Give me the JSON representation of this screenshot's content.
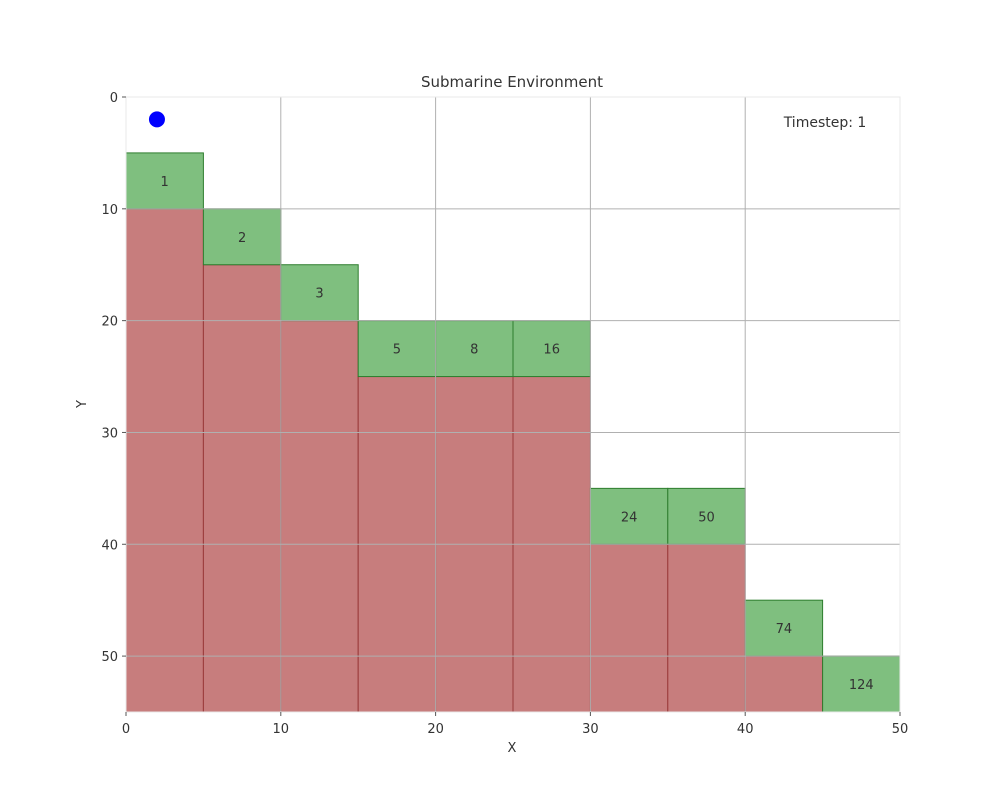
{
  "title": "Submarine Environment",
  "timestep_label": "Timestep: 1",
  "chart_data": {
    "type": "grid-environment",
    "xlabel": "X",
    "ylabel": "Y",
    "xlim": [
      0,
      50
    ],
    "ylim": [
      55,
      0
    ],
    "y_inverted": true,
    "grid": true,
    "x_ticks": [
      0,
      10,
      20,
      30,
      40,
      50
    ],
    "y_ticks": [
      0,
      10,
      20,
      30,
      40,
      50
    ],
    "submarine": {
      "x": 2,
      "y": 2
    },
    "columns": [
      {
        "x0": 0,
        "x1": 5,
        "seabed_y": 10,
        "reward_y": 5,
        "reward": "1"
      },
      {
        "x0": 5,
        "x1": 10,
        "seabed_y": 15,
        "reward_y": 10,
        "reward": "2"
      },
      {
        "x0": 10,
        "x1": 15,
        "seabed_y": 20,
        "reward_y": 15,
        "reward": "3"
      },
      {
        "x0": 15,
        "x1": 20,
        "seabed_y": 25,
        "reward_y": 20,
        "reward": "5"
      },
      {
        "x0": 20,
        "x1": 25,
        "seabed_y": 25,
        "reward_y": 20,
        "reward": "8"
      },
      {
        "x0": 25,
        "x1": 30,
        "seabed_y": 25,
        "reward_y": 20,
        "reward": "16"
      },
      {
        "x0": 30,
        "x1": 35,
        "seabed_y": 40,
        "reward_y": 35,
        "reward": "24"
      },
      {
        "x0": 35,
        "x1": 40,
        "seabed_y": 40,
        "reward_y": 35,
        "reward": "50"
      },
      {
        "x0": 40,
        "x1": 45,
        "seabed_y": 50,
        "reward_y": 45,
        "reward": "74"
      },
      {
        "x0": 45,
        "x1": 50,
        "seabed_y": 55,
        "reward_y": 50,
        "reward": "124"
      }
    ],
    "colors": {
      "seabed": "#c77d7d",
      "seabed_edge": "#9a3a3a",
      "reward": "#7fbf7f",
      "reward_edge": "#2e7d2e",
      "submarine": "#0000ff",
      "grid": "#b0b0b0"
    }
  }
}
